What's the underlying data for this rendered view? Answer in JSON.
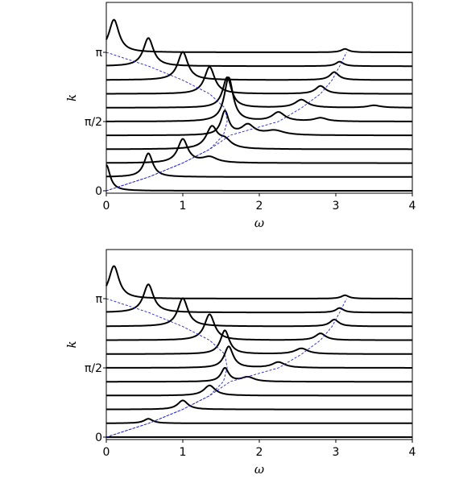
{
  "chart_data": [
    {
      "type": "line",
      "xlabel": "ω",
      "ylabel": "k",
      "xlim": [
        0,
        4
      ],
      "x_ticks": [
        "0",
        "1",
        "2",
        "3",
        "4"
      ],
      "y_tick_labels": [
        "0",
        "π/2",
        "π"
      ],
      "y_tick_values": [
        0,
        1.5708,
        3.1416
      ],
      "k_values": [
        0,
        0.3142,
        0.6283,
        0.9425,
        1.2566,
        1.5708,
        1.885,
        2.1991,
        2.5133,
        2.8274,
        3.1416
      ],
      "dispersion_upper": {
        "description": "",
        "omega_points": [
          [
            0,
            3.1416
          ],
          [
            0.55,
            2.83
          ],
          [
            1.0,
            2.51
          ],
          [
            1.35,
            2.2
          ],
          [
            1.55,
            1.88
          ],
          [
            1.58,
            1.57
          ],
          [
            1.53,
            1.26
          ],
          [
            1.35,
            0.94
          ],
          [
            1.0,
            0.63
          ],
          [
            0.55,
            0.31
          ],
          [
            0,
            0
          ]
        ]
      },
      "dispersion_lower": {
        "omega_points": [
          [
            0,
            0
          ],
          [
            0.55,
            0.31
          ],
          [
            1.0,
            0.63
          ],
          [
            1.35,
            0.94
          ],
          [
            1.62,
            1.26
          ],
          [
            2.25,
            1.57
          ],
          [
            2.55,
            1.88
          ],
          [
            2.8,
            2.2
          ],
          [
            2.95,
            2.51
          ],
          [
            3.05,
            2.83
          ],
          [
            3.14,
            3.1416
          ]
        ]
      },
      "series": [
        {
          "k_index": 0,
          "peaks": [
            [
              0.0,
              1.15,
              0.06
            ]
          ]
        },
        {
          "k_index": 1,
          "peaks": [
            [
              0.55,
              1.05,
              0.07
            ]
          ]
        },
        {
          "k_index": 2,
          "peaks": [
            [
              1.0,
              1.05,
              0.08
            ],
            [
              1.35,
              0.25,
              0.12
            ]
          ]
        },
        {
          "k_index": 3,
          "peaks": [
            [
              1.38,
              0.95,
              0.09
            ],
            [
              1.55,
              0.35,
              0.1
            ]
          ]
        },
        {
          "k_index": 4,
          "peaks": [
            [
              1.55,
              1.05,
              0.06
            ],
            [
              1.85,
              0.45,
              0.1
            ],
            [
              2.2,
              0.2,
              0.15
            ]
          ]
        },
        {
          "k_index": 5,
          "peaks": [
            [
              1.6,
              1.95,
              0.07
            ],
            [
              2.25,
              0.4,
              0.1
            ],
            [
              2.8,
              0.15,
              0.1
            ]
          ]
        },
        {
          "k_index": 6,
          "peaks": [
            [
              1.58,
              1.35,
              0.07
            ],
            [
              2.55,
              0.35,
              0.1
            ],
            [
              3.5,
              0.1,
              0.1
            ]
          ]
        },
        {
          "k_index": 7,
          "peaks": [
            [
              1.35,
              1.2,
              0.08
            ],
            [
              2.8,
              0.35,
              0.08
            ]
          ]
        },
        {
          "k_index": 8,
          "peaks": [
            [
              1.0,
              1.25,
              0.08
            ],
            [
              2.98,
              0.35,
              0.07
            ]
          ]
        },
        {
          "k_index": 9,
          "peaks": [
            [
              0.55,
              1.25,
              0.08
            ],
            [
              3.05,
              0.2,
              0.06
            ]
          ]
        },
        {
          "k_index": 10,
          "peaks": [
            [
              0.1,
              1.45,
              0.08
            ],
            [
              3.12,
              0.15,
              0.06
            ]
          ]
        }
      ]
    },
    {
      "type": "line",
      "xlabel": "ω",
      "ylabel": "k",
      "xlim": [
        0,
        4
      ],
      "x_ticks": [
        "0",
        "1",
        "2",
        "3",
        "4"
      ],
      "y_tick_labels": [
        "0",
        "π/2",
        "π"
      ],
      "y_tick_values": [
        0,
        1.5708,
        3.1416
      ],
      "k_values": [
        0,
        0.3142,
        0.6283,
        0.9425,
        1.2566,
        1.5708,
        1.885,
        2.1991,
        2.5133,
        2.8274,
        3.1416
      ],
      "dispersion_upper": {
        "omega_points": [
          [
            0,
            3.1416
          ],
          [
            0.55,
            2.83
          ],
          [
            1.0,
            2.51
          ],
          [
            1.35,
            2.2
          ],
          [
            1.55,
            1.88
          ],
          [
            1.58,
            1.57
          ],
          [
            1.53,
            1.26
          ],
          [
            1.35,
            0.94
          ],
          [
            1.0,
            0.63
          ],
          [
            0.55,
            0.31
          ],
          [
            0,
            0
          ]
        ]
      },
      "dispersion_lower": {
        "omega_points": [
          [
            0,
            0
          ],
          [
            0.55,
            0.31
          ],
          [
            1.0,
            0.63
          ],
          [
            1.35,
            0.94
          ],
          [
            1.62,
            1.26
          ],
          [
            2.25,
            1.57
          ],
          [
            2.55,
            1.88
          ],
          [
            2.8,
            2.2
          ],
          [
            2.95,
            2.51
          ],
          [
            3.05,
            2.83
          ],
          [
            3.14,
            3.1416
          ]
        ]
      },
      "series": [
        {
          "k_index": 0,
          "peaks": []
        },
        {
          "k_index": 1,
          "peaks": [
            [
              0.55,
              0.2,
              0.07
            ]
          ]
        },
        {
          "k_index": 2,
          "peaks": [
            [
              1.0,
              0.4,
              0.08
            ]
          ]
        },
        {
          "k_index": 3,
          "peaks": [
            [
              1.35,
              0.45,
              0.09
            ]
          ]
        },
        {
          "k_index": 4,
          "peaks": [
            [
              1.55,
              0.6,
              0.06
            ],
            [
              1.85,
              0.2,
              0.1
            ]
          ]
        },
        {
          "k_index": 5,
          "peaks": [
            [
              1.6,
              0.95,
              0.07
            ],
            [
              2.25,
              0.25,
              0.1
            ]
          ]
        },
        {
          "k_index": 6,
          "peaks": [
            [
              1.55,
              1.05,
              0.07
            ],
            [
              2.55,
              0.25,
              0.1
            ]
          ]
        },
        {
          "k_index": 7,
          "peaks": [
            [
              1.35,
              1.15,
              0.08
            ],
            [
              2.8,
              0.3,
              0.08
            ]
          ]
        },
        {
          "k_index": 8,
          "peaks": [
            [
              1.0,
              1.25,
              0.08
            ],
            [
              2.98,
              0.3,
              0.07
            ]
          ]
        },
        {
          "k_index": 9,
          "peaks": [
            [
              0.55,
              1.25,
              0.08
            ],
            [
              3.05,
              0.2,
              0.06
            ]
          ]
        },
        {
          "k_index": 10,
          "peaks": [
            [
              0.1,
              1.45,
              0.08
            ],
            [
              3.12,
              0.15,
              0.06
            ]
          ]
        }
      ]
    }
  ]
}
